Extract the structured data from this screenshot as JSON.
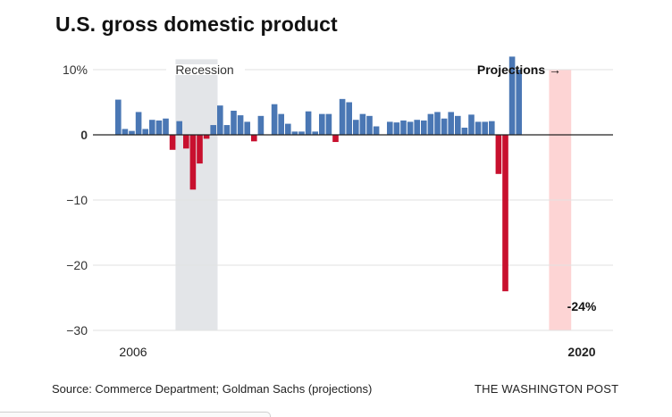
{
  "title": "U.S. gross domestic product",
  "footer": {
    "source": "Source: Commerce Department; Goldman Sachs (projections)",
    "credit": "THE WASHINGTON POST"
  },
  "annotations": {
    "recession_label": "Recession",
    "projections_label": "Projections →",
    "low_point_label": "-24%"
  },
  "colors": {
    "positive": "#4a77b4",
    "negative": "#c8102e",
    "recession_shade": "#e3e5e8",
    "projection_shade": "#fdd4d4",
    "grid": "#e2e2e2",
    "zero_line": "#222222"
  },
  "chart_data": {
    "type": "bar",
    "title": "U.S. gross domestic product",
    "xlabel": "",
    "ylabel": "",
    "ylim": [
      -30,
      12
    ],
    "grid": true,
    "y_ticks": [
      10,
      0,
      -10,
      -20,
      -30
    ],
    "y_tick_labels": [
      "10%",
      "0",
      "−10",
      "−20",
      "−30"
    ],
    "x_tick_labels": [
      {
        "label": "2006",
        "category_index": 2
      },
      {
        "label": "2020",
        "category_index": 65
      }
    ],
    "recession_span": {
      "start_index": 9,
      "end_index": 15
    },
    "projection_span": {
      "start_index": 64,
      "end_index": 67
    },
    "values": [
      5.4,
      0.9,
      0.6,
      3.5,
      0.9,
      2.3,
      2.2,
      2.5,
      -2.3,
      2.1,
      -2.1,
      -8.4,
      -4.4,
      -0.6,
      1.5,
      4.5,
      1.5,
      3.7,
      3.0,
      2.0,
      -1.0,
      2.9,
      0.0,
      4.7,
      3.2,
      1.7,
      0.5,
      0.5,
      3.6,
      0.5,
      3.2,
      3.2,
      -1.1,
      5.5,
      5.0,
      2.3,
      3.2,
      2.9,
      1.3,
      0.0,
      2.0,
      1.9,
      2.2,
      2.0,
      2.3,
      2.2,
      3.2,
      3.5,
      2.5,
      3.5,
      2.9,
      1.1,
      3.1,
      2.0,
      2.0,
      2.1,
      -6.0,
      -24.0,
      12.0,
      10.0
    ]
  }
}
